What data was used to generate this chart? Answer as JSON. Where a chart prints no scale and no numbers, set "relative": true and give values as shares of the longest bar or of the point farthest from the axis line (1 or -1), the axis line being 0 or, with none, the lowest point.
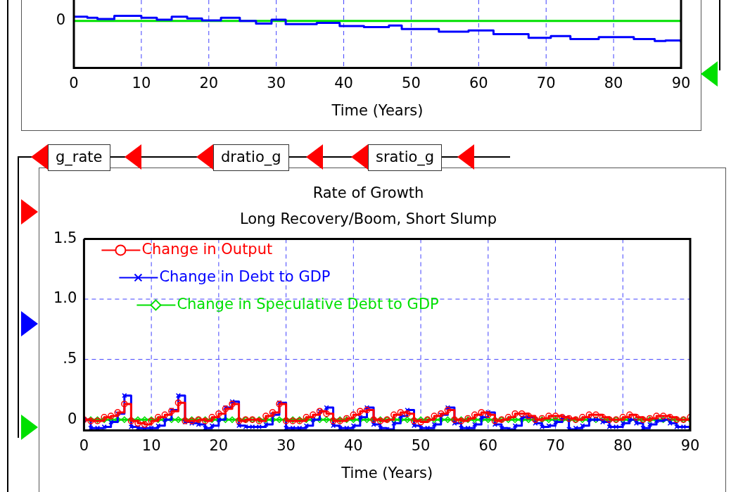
{
  "chart_data": [
    {
      "type": "step",
      "xlabel": "Time (Years)",
      "relative": true,
      "grid": "x",
      "xlim": [
        0,
        90
      ],
      "xticks": [
        0,
        10,
        20,
        30,
        40,
        50,
        60,
        70,
        80,
        90
      ],
      "annotations": [
        "0"
      ],
      "series": [
        {
          "color": "#0000ff",
          "x": [
            0,
            2,
            3.5,
            6,
            10,
            12.3,
            14.5,
            16.8,
            19,
            21.8,
            24.6,
            27,
            29.3,
            31.4,
            35,
            36,
            39.4,
            43,
            46.7,
            48.6,
            51.7,
            54.1,
            58.5,
            62.2,
            67.4,
            70.7,
            73.6,
            77.8,
            83,
            86.1,
            87.7,
            90
          ],
          "values": [
            0.2,
            0.15,
            0.09,
            0.24,
            0.15,
            0.06,
            0.2,
            0.12,
            0.03,
            0.15,
            0,
            -0.12,
            0.06,
            -0.15,
            -0.15,
            -0.09,
            -0.24,
            -0.29,
            -0.21,
            -0.38,
            -0.38,
            -0.5,
            -0.44,
            -0.62,
            -0.79,
            -0.71,
            -0.85,
            -0.76,
            -0.85,
            -0.94,
            -0.91,
            -1
          ]
        },
        {
          "color": "#00e000",
          "x": [
            0,
            90
          ],
          "values": [
            0,
            0
          ]
        }
      ]
    },
    {
      "type": "step",
      "title": "Rate of Growth",
      "subtitle": "Long Recovery/Boom, Short Slump",
      "xlabel": "Time (Years)",
      "grid": true,
      "legend": "top left",
      "xlim": [
        0,
        90
      ],
      "xticks": [
        0,
        10,
        20,
        30,
        40,
        50,
        60,
        70,
        80,
        90
      ],
      "ylim": [
        -0.09,
        1.5
      ],
      "yticks": [
        0,
        {
          "value": 0.5,
          "label": ".5"
        },
        {
          "value": 1,
          "label": "1.0"
        },
        {
          "value": 1.5,
          "label": "1.5"
        }
      ],
      "annotations": [
        "g_rate",
        "dratio_g",
        "sratio_g"
      ],
      "x": [
        0,
        1,
        2,
        3,
        4,
        5,
        6,
        7,
        8,
        9,
        10,
        11,
        12,
        13,
        14,
        15,
        16,
        17,
        18,
        19,
        20,
        21,
        22,
        23,
        24,
        25,
        26,
        27,
        28,
        29,
        30,
        31,
        32,
        33,
        34,
        35,
        36,
        37,
        38,
        39,
        40,
        41,
        42,
        43,
        44,
        45,
        46,
        47,
        48,
        49,
        50,
        51,
        52,
        53,
        54,
        55,
        56,
        57,
        58,
        59,
        60,
        61,
        62,
        63,
        64,
        65,
        66,
        67,
        68,
        69,
        70,
        71,
        72,
        73,
        74,
        75,
        76,
        77,
        78,
        79,
        80,
        81,
        82,
        83,
        84,
        85,
        86,
        87,
        88,
        89,
        90
      ],
      "series": [
        {
          "name": "Change in Output",
          "color": "#ff0000",
          "marker": "circle",
          "values": [
            0,
            -0.01,
            -0.01,
            0.02,
            0.03,
            0.06,
            0.13,
            -0.01,
            -0.03,
            -0.04,
            -0.01,
            0.02,
            0.04,
            0.07,
            0.14,
            -0.01,
            -0.01,
            0,
            -0.01,
            0.02,
            0.05,
            0.09,
            0.13,
            -0.01,
            0,
            0,
            -0.01,
            0.03,
            0.06,
            0.13,
            -0.01,
            -0.01,
            -0.01,
            0.02,
            0.04,
            0.07,
            0.05,
            -0.01,
            -0.01,
            0.01,
            0.04,
            0.07,
            0.08,
            0,
            -0.01,
            0,
            0.04,
            0.06,
            0.05,
            -0.01,
            -0.02,
            0,
            0.03,
            0.05,
            0.08,
            0,
            -0.01,
            0.01,
            0.04,
            0.06,
            0.04,
            -0.01,
            0,
            0.02,
            0.05,
            0.05,
            0.03,
            0,
            0.01,
            0.03,
            0.03,
            0.02,
            0.01,
            0,
            0.02,
            0.04,
            0.04,
            0.02,
            0,
            0,
            0.02,
            0.04,
            0.02,
            0,
            0.01,
            0.03,
            0.03,
            0.02,
            0,
            0,
            0.02
          ]
        },
        {
          "name": "Change in Debt to GDP",
          "color": "#0000ff",
          "marker": "cross",
          "values": [
            0,
            -0.07,
            -0.07,
            -0.06,
            -0.02,
            0.05,
            0.2,
            -0.06,
            -0.07,
            -0.07,
            -0.07,
            -0.05,
            0,
            0.08,
            0.2,
            -0.02,
            -0.03,
            -0.04,
            -0.07,
            -0.05,
            0,
            0.1,
            0.15,
            -0.05,
            -0.06,
            -0.06,
            -0.06,
            -0.04,
            0.04,
            0.14,
            -0.07,
            -0.07,
            -0.07,
            -0.05,
            0,
            0.07,
            0.1,
            -0.05,
            -0.07,
            -0.07,
            -0.05,
            0.02,
            0.1,
            -0.04,
            -0.07,
            -0.08,
            -0.03,
            0.03,
            0.08,
            -0.05,
            -0.07,
            -0.07,
            -0.04,
            0.04,
            0.1,
            -0.03,
            -0.07,
            -0.07,
            -0.04,
            0.02,
            0.06,
            -0.04,
            -0.07,
            -0.08,
            -0.05,
            0.02,
            0.02,
            -0.03,
            -0.06,
            -0.05,
            -0.02,
            0.02,
            -0.08,
            -0.07,
            -0.05,
            0,
            0,
            -0.02,
            -0.06,
            -0.06,
            -0.03,
            0,
            -0.03,
            -0.07,
            -0.04,
            -0.01,
            0,
            -0.03,
            -0.06,
            -0.06,
            -0.07
          ]
        },
        {
          "name": "Change in Speculative Debt to GDP",
          "color": "#00e000",
          "marker": "diamond",
          "values": [
            0,
            0,
            0,
            0,
            0,
            0,
            0,
            0,
            0,
            0,
            0,
            0,
            0,
            0,
            0,
            0,
            0,
            0,
            0,
            0,
            0,
            0,
            0,
            0,
            0,
            0,
            0,
            0,
            0,
            0,
            0,
            0,
            0,
            0,
            0,
            0,
            0,
            0,
            0,
            0,
            0,
            0,
            0,
            0,
            0,
            0,
            0,
            0,
            0,
            0,
            0,
            0,
            0,
            0,
            0,
            0,
            0,
            0,
            0,
            0,
            0,
            0,
            0,
            0,
            0,
            0,
            0,
            0,
            0,
            0,
            0,
            0,
            0,
            0,
            0,
            0,
            0,
            0,
            0,
            0,
            0,
            0,
            0,
            0,
            0,
            0,
            0,
            0,
            0,
            0,
            0
          ]
        }
      ]
    }
  ]
}
